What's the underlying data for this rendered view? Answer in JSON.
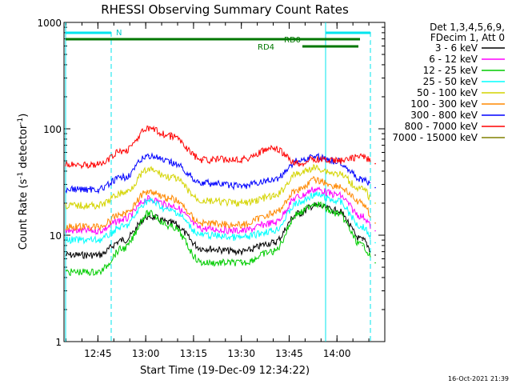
{
  "chart_data": {
    "type": "line",
    "title": "RHESSI Observing Summary Count Rates",
    "xlabel": "Start Time (19-Dec-09 12:34:22)",
    "ylabel_main": "Count Rate (s",
    "ylabel_sup1": "-1",
    "ylabel_mid": " detector",
    "ylabel_sup2": "-1",
    "ylabel_end": ")",
    "yscale": "log",
    "ylim": [
      1,
      1000
    ],
    "yticks": [
      1,
      10,
      100,
      1000
    ],
    "ytick_labels": [
      "1",
      "10",
      "100",
      "1000"
    ],
    "xlim": [
      "12:34:22",
      "14:15:00"
    ],
    "xticks": [
      "12:45",
      "13:00",
      "13:15",
      "13:30",
      "13:45",
      "14:00"
    ],
    "legend_header": [
      "Det 1,3,4,5,6,9,",
      "FDecim 1, Att 0"
    ],
    "series": [
      {
        "name": "3 - 6 keV",
        "color": "#000000",
        "x": [
          "12:34",
          "12:45",
          "12:53",
          "13:01",
          "13:08",
          "13:18",
          "13:30",
          "13:40",
          "13:48",
          "13:53",
          "14:00",
          "14:08",
          "14:12"
        ],
        "y": [
          6.5,
          6.5,
          9,
          15,
          13,
          7.5,
          7,
          8.5,
          16,
          19,
          17,
          9,
          6.5
        ]
      },
      {
        "name": "6 - 12 keV",
        "color": "#ff00ff",
        "x": [
          "12:34",
          "12:45",
          "12:53",
          "13:01",
          "13:08",
          "13:18",
          "13:30",
          "13:40",
          "13:48",
          "13:53",
          "14:00",
          "14:08",
          "14:12"
        ],
        "y": [
          11,
          11,
          14,
          22,
          19,
          11.5,
          11,
          13,
          23,
          27,
          24,
          15,
          11
        ]
      },
      {
        "name": "12 - 25 keV",
        "color": "#00cc00",
        "x": [
          "12:34",
          "12:45",
          "12:53",
          "13:01",
          "13:08",
          "13:18",
          "13:30",
          "13:40",
          "13:48",
          "13:53",
          "14:00",
          "14:08",
          "14:12"
        ],
        "y": [
          4.5,
          4.5,
          7.5,
          16,
          12,
          5.5,
          5.5,
          7,
          16,
          20,
          16,
          8,
          5.5
        ]
      },
      {
        "name": "25 - 50 keV",
        "color": "#00ffff",
        "x": [
          "12:34",
          "12:45",
          "12:53",
          "13:01",
          "13:08",
          "13:18",
          "13:30",
          "13:40",
          "13:48",
          "13:53",
          "14:00",
          "14:08",
          "14:12"
        ],
        "y": [
          9,
          9,
          12,
          21,
          17,
          10,
          9.5,
          11,
          20,
          24,
          21,
          12,
          8.5
        ]
      },
      {
        "name": "50 - 100 keV",
        "color": "#d4d400",
        "x": [
          "12:34",
          "12:45",
          "12:53",
          "13:01",
          "13:08",
          "13:18",
          "13:30",
          "13:40",
          "13:48",
          "13:53",
          "14:00",
          "14:08",
          "14:12"
        ],
        "y": [
          19,
          19,
          25,
          41,
          35,
          21,
          20,
          23,
          38,
          43,
          38,
          27,
          20
        ]
      },
      {
        "name": "100 - 300 keV",
        "color": "#ff8800",
        "x": [
          "12:34",
          "12:45",
          "12:53",
          "13:01",
          "13:08",
          "13:18",
          "13:30",
          "13:40",
          "13:48",
          "13:53",
          "14:00",
          "14:08",
          "14:12"
        ],
        "y": [
          12,
          12,
          16,
          26,
          22,
          13,
          12.5,
          16,
          27,
          33,
          29,
          20,
          13
        ]
      },
      {
        "name": "300 - 800 keV",
        "color": "#0000ff",
        "x": [
          "12:34",
          "12:45",
          "12:53",
          "13:01",
          "13:08",
          "13:18",
          "13:30",
          "13:40",
          "13:48",
          "13:53",
          "14:00",
          "14:08",
          "14:12"
        ],
        "y": [
          27,
          27,
          35,
          56,
          48,
          31,
          29,
          33,
          50,
          55,
          50,
          33,
          28
        ]
      },
      {
        "name": "800 - 7000 keV",
        "color": "#ff0000",
        "x": [
          "12:34",
          "12:45",
          "12:53",
          "13:01",
          "13:08",
          "13:18",
          "13:30",
          "13:40",
          "13:48",
          "13:53",
          "14:00",
          "14:08",
          "14:12"
        ],
        "y": [
          46,
          46,
          62,
          100,
          85,
          51,
          52,
          65,
          47,
          52,
          50,
          55,
          47
        ]
      },
      {
        "name": "7000 - 15000 keV",
        "color": "#808000",
        "x": [],
        "y": []
      }
    ],
    "annotations": {
      "night_label": "N",
      "rd0_label": "RD0",
      "rd4_label": "RD4"
    },
    "footer_date": "16-Oct-2021 21:39"
  }
}
